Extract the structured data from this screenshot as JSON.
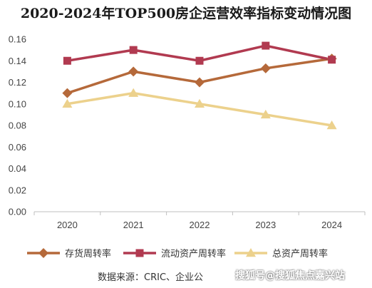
{
  "chart_data": {
    "type": "line",
    "title": "2020-2024年TOP500房企运营效率指标变动情况图",
    "categories": [
      "2020",
      "2021",
      "2022",
      "2023",
      "2024"
    ],
    "ylim": [
      0,
      0.16
    ],
    "yticks": [
      "0.00",
      "0.02",
      "0.04",
      "0.06",
      "0.08",
      "0.10",
      "0.12",
      "0.14",
      "0.16"
    ],
    "grid": false,
    "legend_position": "bottom",
    "series": [
      {
        "name": "存货周转率",
        "values": [
          0.11,
          0.13,
          0.12,
          0.133,
          0.142
        ],
        "color": "#b5693a",
        "marker": "diamond"
      },
      {
        "name": "流动资产周转率",
        "values": [
          0.14,
          0.15,
          0.14,
          0.154,
          0.141
        ],
        "color": "#b13a50",
        "marker": "square"
      },
      {
        "name": "总资产周转率",
        "values": [
          0.1,
          0.11,
          0.1,
          0.09,
          0.08
        ],
        "color": "#ecd18c",
        "marker": "triangle"
      }
    ]
  },
  "footer": {
    "source": "数据来源：CRIC、企业公",
    "watermark": "搜狐号@搜狐焦点嘉兴站"
  }
}
